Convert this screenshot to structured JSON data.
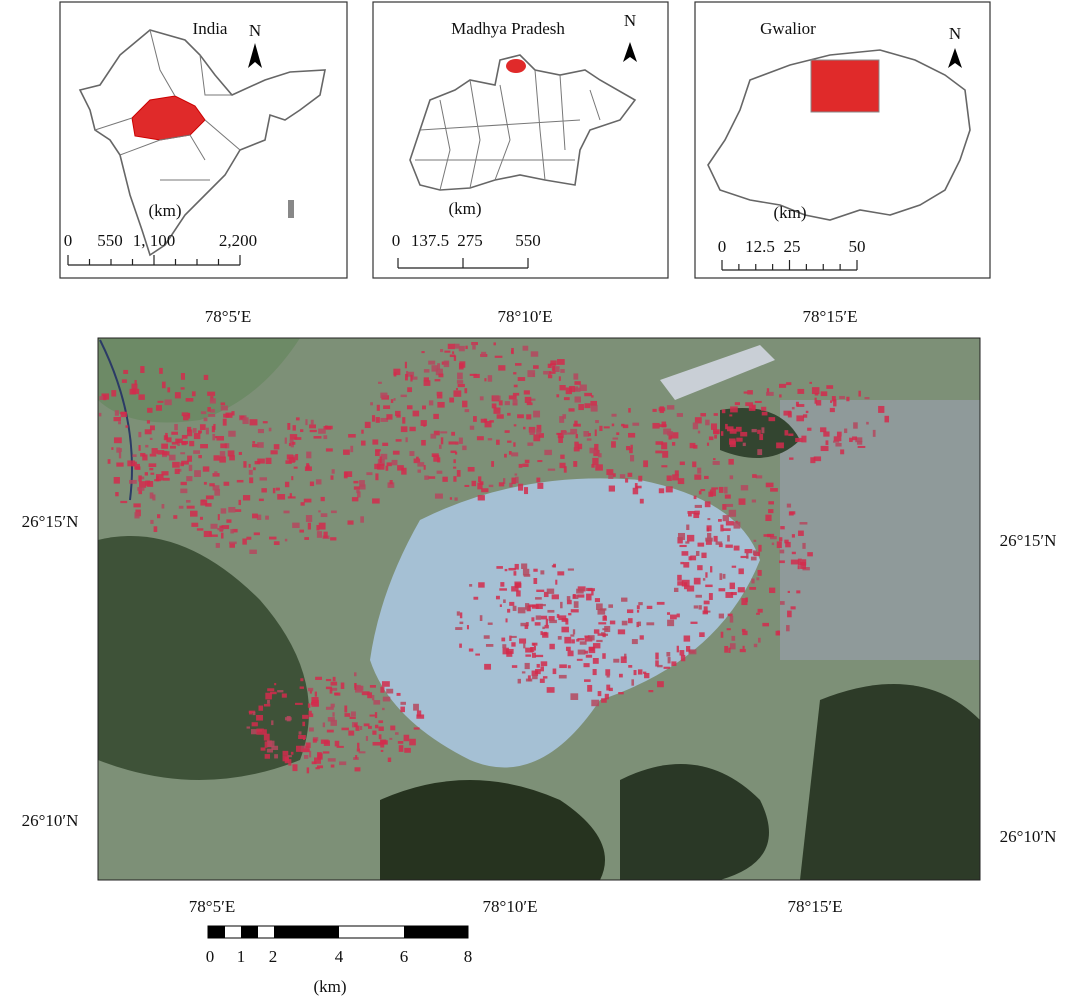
{
  "insets": [
    {
      "title": "India",
      "north": "N",
      "unit": "(km)",
      "scale_labels": [
        "0",
        "550",
        "1, 100",
        "2,200"
      ]
    },
    {
      "title": "Madhya Pradesh",
      "north": "N",
      "unit": "(km)",
      "scale_labels": [
        "0",
        "137.5",
        "275",
        "550"
      ]
    },
    {
      "title": "Gwalior",
      "north": "N",
      "unit": "(km)",
      "scale_labels": [
        "0",
        "12.5",
        "25",
        "50"
      ]
    }
  ],
  "main_map": {
    "top_longitudes": [
      "78°5′E",
      "78°10′E",
      "78°15′E"
    ],
    "bottom_longitudes": [
      "78°5′E",
      "78°10′E",
      "78°15′E"
    ],
    "left_latitudes": [
      "26°15′N",
      "26°10′N"
    ],
    "right_latitudes": [
      "26°15′N",
      "26°10′N"
    ],
    "scale_labels": [
      "0",
      "1",
      "2",
      "4",
      "6",
      "8"
    ],
    "unit": "(km)"
  }
}
